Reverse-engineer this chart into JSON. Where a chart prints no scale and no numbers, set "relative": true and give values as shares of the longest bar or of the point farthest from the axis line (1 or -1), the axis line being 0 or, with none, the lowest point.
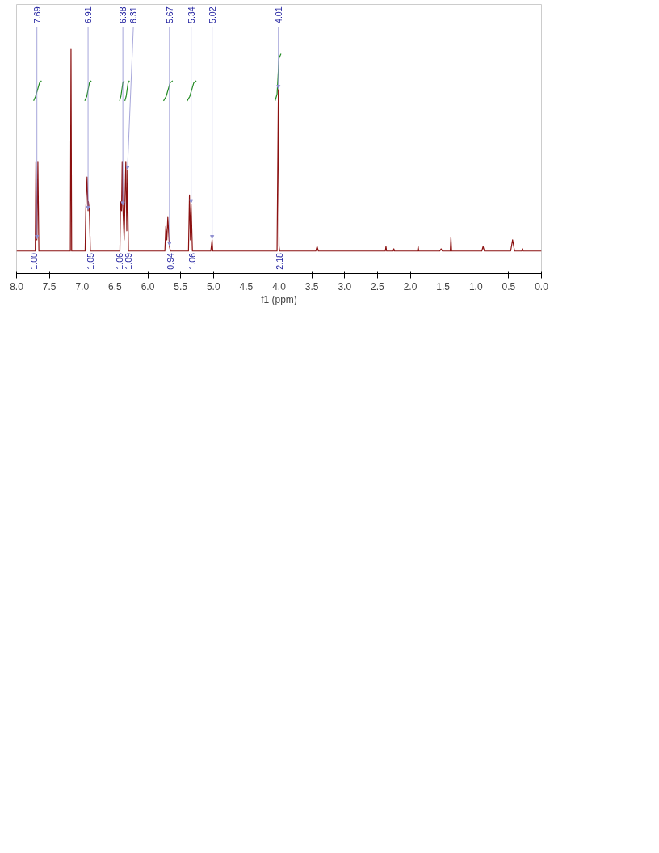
{
  "chart_data": {
    "type": "line",
    "relative": true,
    "xlabel": "f1 (ppm)",
    "xlim": [
      8.0,
      0.0
    ],
    "xticks": [
      {
        "value": 8,
        "label": "8.0"
      },
      {
        "value": 7.5,
        "label": "7.5"
      },
      {
        "value": 7,
        "label": "7.0"
      },
      {
        "value": 6.5,
        "label": "6.5"
      },
      {
        "value": 6,
        "label": "6.0"
      },
      {
        "value": 5.5,
        "label": "5.5"
      },
      {
        "value": 5,
        "label": "5.0"
      },
      {
        "value": 4.5,
        "label": "4.5"
      },
      {
        "value": 4,
        "label": "4.0"
      },
      {
        "value": 3.5,
        "label": "3.5"
      },
      {
        "value": 3,
        "label": "3.0"
      },
      {
        "value": 2.5,
        "label": "2.5"
      },
      {
        "value": 2,
        "label": "2.0"
      },
      {
        "value": 1.5,
        "label": "1.5"
      },
      {
        "value": 1,
        "label": "1.0"
      },
      {
        "value": 0.5,
        "label": "0.5"
      },
      {
        "value": 0,
        "label": "0.0"
      }
    ],
    "tick_labels": "x",
    "grid": false,
    "line_style": "solid",
    "series": [
      {
        "color": "#8b1010",
        "x": [
          8.0,
          7.73,
          7.715,
          7.705,
          7.69,
          7.675,
          7.66,
          7.2,
          7.18,
          7.17,
          7.16,
          7.14,
          6.955,
          6.945,
          6.925,
          6.91,
          6.905,
          6.89,
          6.875,
          6.425,
          6.415,
          6.4,
          6.39,
          6.38,
          6.36,
          6.335,
          6.32,
          6.31,
          6.295,
          5.74,
          5.725,
          5.71,
          5.695,
          5.67,
          5.655,
          5.38,
          5.365,
          5.35,
          5.34,
          5.32,
          5.04,
          5.02,
          5.01,
          4.03,
          4.01,
          4.0,
          3.99,
          3.44,
          3.42,
          3.4,
          2.38,
          2.37,
          2.36,
          2.26,
          2.25,
          2.24,
          1.89,
          1.88,
          1.87,
          1.55,
          1.53,
          1.51,
          1.39,
          1.38,
          1.37,
          0.91,
          0.89,
          0.87,
          0.47,
          0.44,
          0.41,
          0.3,
          0.29,
          0.28,
          0.0
        ],
        "values": [
          0.1,
          0.1,
          0.1,
          0.5,
          0.15,
          0.5,
          0.1,
          0.1,
          0.1,
          1.0,
          0.1,
          0.1,
          0.1,
          0.28,
          0.43,
          0.28,
          0.32,
          0.28,
          0.1,
          0.1,
          0.32,
          0.28,
          0.5,
          0.3,
          0.15,
          0.5,
          0.19,
          0.46,
          0.1,
          0.1,
          0.21,
          0.15,
          0.25,
          0.12,
          0.1,
          0.1,
          0.35,
          0.15,
          0.31,
          0.1,
          0.1,
          0.15,
          0.1,
          0.1,
          0.82,
          0.12,
          0.1,
          0.1,
          0.12,
          0.1,
          0.1,
          0.12,
          0.1,
          0.1,
          0.11,
          0.1,
          0.1,
          0.12,
          0.1,
          0.1,
          0.11,
          0.1,
          0.1,
          0.16,
          0.1,
          0.1,
          0.12,
          0.1,
          0.1,
          0.15,
          0.1,
          0.1,
          0.11,
          0.1,
          0.1
        ]
      },
      {
        "color": "#228b22",
        "x": [
          7.74,
          7.71,
          7.65,
          7.62
        ],
        "values": [
          0.77,
          0.79,
          0.85,
          0.86
        ]
      },
      {
        "color": "#228b22",
        "x": [
          6.96,
          6.93,
          6.89,
          6.86
        ],
        "values": [
          0.77,
          0.79,
          0.85,
          0.86
        ]
      },
      {
        "color": "#228b22",
        "x": [
          6.43,
          6.41,
          6.38,
          6.36
        ],
        "values": [
          0.77,
          0.79,
          0.85,
          0.86
        ]
      },
      {
        "color": "#228b22",
        "x": [
          6.35,
          6.33,
          6.3,
          6.28
        ],
        "values": [
          0.77,
          0.79,
          0.85,
          0.86
        ]
      },
      {
        "color": "#228b22",
        "x": [
          5.76,
          5.72,
          5.66,
          5.62
        ],
        "values": [
          0.77,
          0.79,
          0.85,
          0.86
        ]
      },
      {
        "color": "#228b22",
        "x": [
          5.4,
          5.36,
          5.3,
          5.26
        ],
        "values": [
          0.77,
          0.79,
          0.85,
          0.86
        ]
      },
      {
        "color": "#228b22",
        "x": [
          4.06,
          4.03,
          4.0,
          3.97
        ],
        "values": [
          0.77,
          0.8,
          0.96,
          0.98
        ]
      }
    ],
    "annotations": [
      {
        "text": "7.69",
        "x": 7.69,
        "y": 0.15
      },
      {
        "text": "6.91",
        "x": 6.91,
        "y": 0.28
      },
      {
        "text": "6.38",
        "x": 6.38,
        "y": 0.3
      },
      {
        "text": "6.31",
        "x": 6.31,
        "y": 0.46
      },
      {
        "text": "5.67",
        "x": 5.67,
        "y": 0.12
      },
      {
        "text": "5.34",
        "x": 5.34,
        "y": 0.31
      },
      {
        "text": "5.02",
        "x": 5.02,
        "y": 0.15
      },
      {
        "text": "4.01",
        "x": 4.01,
        "y": 0.82
      },
      {
        "text": "1.00",
        "x": 7.73,
        "y": 0.1
      },
      {
        "text": "1.05",
        "x": 6.875,
        "y": 0.1
      },
      {
        "text": "1.06",
        "x": 6.425,
        "y": 0.1
      },
      {
        "text": "1.09",
        "x": 6.295,
        "y": 0.1
      },
      {
        "text": "0.94",
        "x": 5.655,
        "y": 0.1
      },
      {
        "text": "1.06",
        "x": 5.32,
        "y": 0.1
      },
      {
        "text": "2.18",
        "x": 3.99,
        "y": 0.1
      }
    ]
  }
}
